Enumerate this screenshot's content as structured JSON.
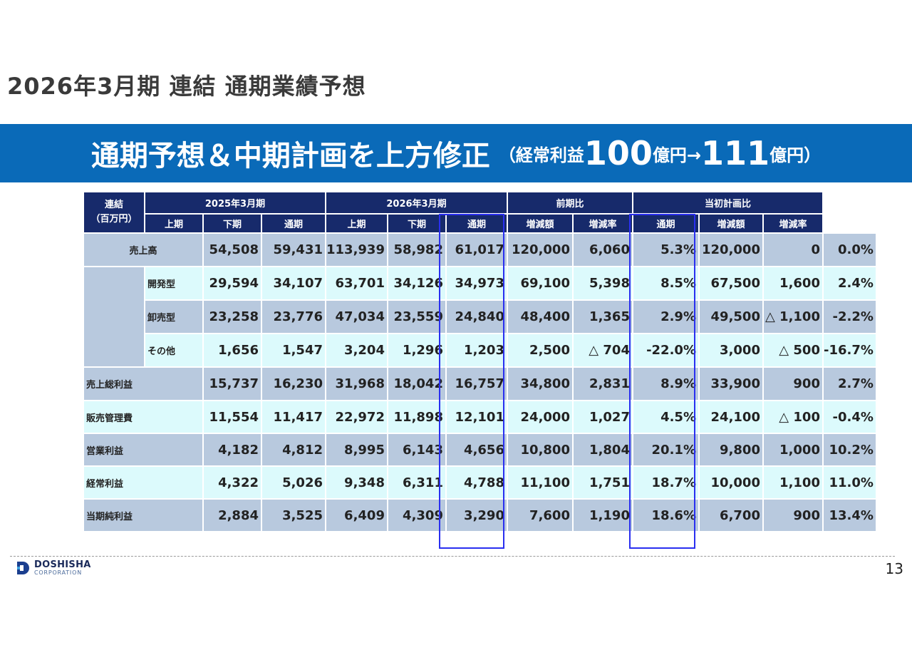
{
  "page_title": "2026年3月期 連結 通期業績予想",
  "banner": {
    "main": "通期予想＆中期計画を上方修正",
    "prefix": "（経常利益",
    "from": "100",
    "unit1": "億円→",
    "to": "111",
    "unit2": "億円）"
  },
  "table": {
    "corner_label": "連結",
    "corner_sublabel": "（百万円）",
    "groups": {
      "fy2025": "2025年3月期",
      "fy2026": "2026年3月期",
      "yoy": "前期比",
      "vs_plan": "当初計画比"
    },
    "subheaders": [
      "上期",
      "下期",
      "通期",
      "上期",
      "下期",
      "通期",
      "増減額",
      "増減率",
      "通期",
      "増減額",
      "増減率"
    ],
    "rows": [
      {
        "label": "売上高",
        "values": [
          "54,508",
          "59,431",
          "113,939",
          "58,982",
          "61,017",
          "120,000",
          "6,060",
          "5.3%",
          "120,000",
          "0",
          "0.0%"
        ]
      },
      {
        "label": "開発型",
        "values": [
          "29,594",
          "34,107",
          "63,701",
          "34,126",
          "34,973",
          "69,100",
          "5,398",
          "8.5%",
          "67,500",
          "1,600",
          "2.4%"
        ]
      },
      {
        "label": "卸売型",
        "values": [
          "23,258",
          "23,776",
          "47,034",
          "23,559",
          "24,840",
          "48,400",
          "1,365",
          "2.9%",
          "49,500",
          "△ 1,100",
          "-2.2%"
        ]
      },
      {
        "label": "その他",
        "values": [
          "1,656",
          "1,547",
          "3,204",
          "1,296",
          "1,203",
          "2,500",
          "△ 704",
          "-22.0%",
          "3,000",
          "△ 500",
          "-16.7%"
        ]
      },
      {
        "label": "売上総利益",
        "values": [
          "15,737",
          "16,230",
          "31,968",
          "18,042",
          "16,757",
          "34,800",
          "2,831",
          "8.9%",
          "33,900",
          "900",
          "2.7%"
        ]
      },
      {
        "label": "販売管理費",
        "values": [
          "11,554",
          "11,417",
          "22,972",
          "11,898",
          "12,101",
          "24,000",
          "1,027",
          "4.5%",
          "24,100",
          "△ 100",
          "-0.4%"
        ]
      },
      {
        "label": "営業利益",
        "values": [
          "4,182",
          "4,812",
          "8,995",
          "6,143",
          "4,656",
          "10,800",
          "1,804",
          "20.1%",
          "9,800",
          "1,000",
          "10.2%"
        ]
      },
      {
        "label": "経常利益",
        "values": [
          "4,322",
          "5,026",
          "9,348",
          "6,311",
          "4,788",
          "11,100",
          "1,751",
          "18.7%",
          "10,000",
          "1,100",
          "11.0%"
        ]
      },
      {
        "label": "当期純利益",
        "values": [
          "2,884",
          "3,525",
          "6,409",
          "4,309",
          "3,290",
          "7,600",
          "1,190",
          "18.6%",
          "6,700",
          "900",
          "13.4%"
        ]
      }
    ]
  },
  "footer": {
    "logo_name": "DOSHISHA",
    "logo_sub": "CORPORATION",
    "page_number": "13"
  },
  "colors": {
    "banner_bg": "#0a6ab8",
    "header_bg": "#172a6b",
    "row_dark": "#b8c9de",
    "row_light": "#dcfafc",
    "highlight_border": "#2a2ff0"
  }
}
